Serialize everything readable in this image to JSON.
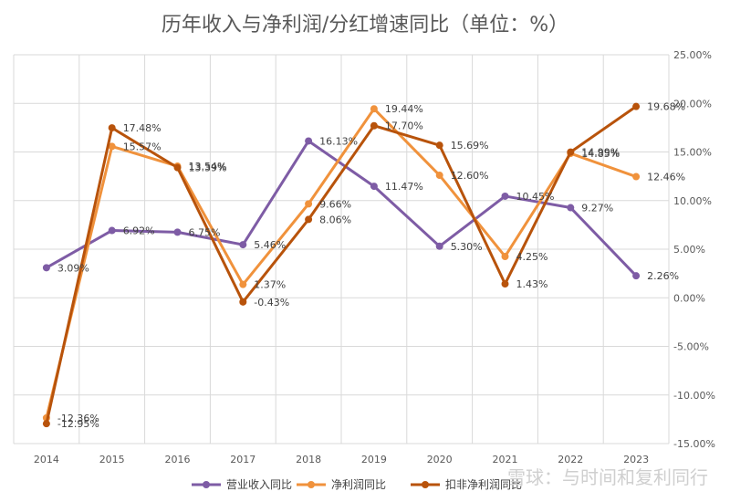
{
  "chart_data": {
    "type": "line",
    "title": "历年收入与净利润/分红增速同比（单位：%）",
    "categories": [
      "2014",
      "2015",
      "2016",
      "2017",
      "2018",
      "2019",
      "2020",
      "2021",
      "2022",
      "2023"
    ],
    "ylim": [
      -15,
      25
    ],
    "yticks": [
      25,
      20,
      15,
      10,
      5,
      0,
      -5,
      -10,
      -15
    ],
    "ytick_labels": [
      "25.00%",
      "20.00%",
      "15.00%",
      "10.00%",
      "5.00%",
      "0.00%",
      "-5.00%",
      "-10.00%",
      "-15.00%"
    ],
    "grid": true,
    "legend_position": "bottom",
    "series": [
      {
        "name": "营业收入同比",
        "color": "#7e5ca5",
        "values": [
          3.09,
          6.92,
          6.75,
          5.46,
          16.13,
          11.47,
          5.3,
          10.45,
          9.27,
          2.26
        ],
        "labels": [
          "3.09%",
          "6.92%",
          "6.75%",
          "5.46%",
          "16.13%",
          "11.47%",
          "5.30%",
          "10.45%",
          "9.27%",
          "2.26%"
        ]
      },
      {
        "name": "净利润同比",
        "color": "#f0923c",
        "values": [
          -12.36,
          15.57,
          13.54,
          1.37,
          9.66,
          19.44,
          12.6,
          4.25,
          14.85,
          12.46
        ],
        "labels": [
          "-12.36%",
          "15.57%",
          "13.54%",
          "1.37%",
          "9.66%",
          "19.44%",
          "12.60%",
          "4.25%",
          "14.85%",
          "12.46%"
        ]
      },
      {
        "name": "扣非净利润同比",
        "color": "#b8530b",
        "values": [
          -12.95,
          17.48,
          13.39,
          -0.43,
          8.06,
          17.7,
          15.69,
          1.43,
          14.99,
          19.68
        ],
        "labels": [
          "-12.95%",
          "17.48%",
          "13.39%",
          "-0.43%",
          "8.06%",
          "17.70%",
          "15.69%",
          "1.43%",
          "14.99%",
          "19.68%"
        ]
      }
    ]
  },
  "watermark": "雪球：与时间和复利同行"
}
